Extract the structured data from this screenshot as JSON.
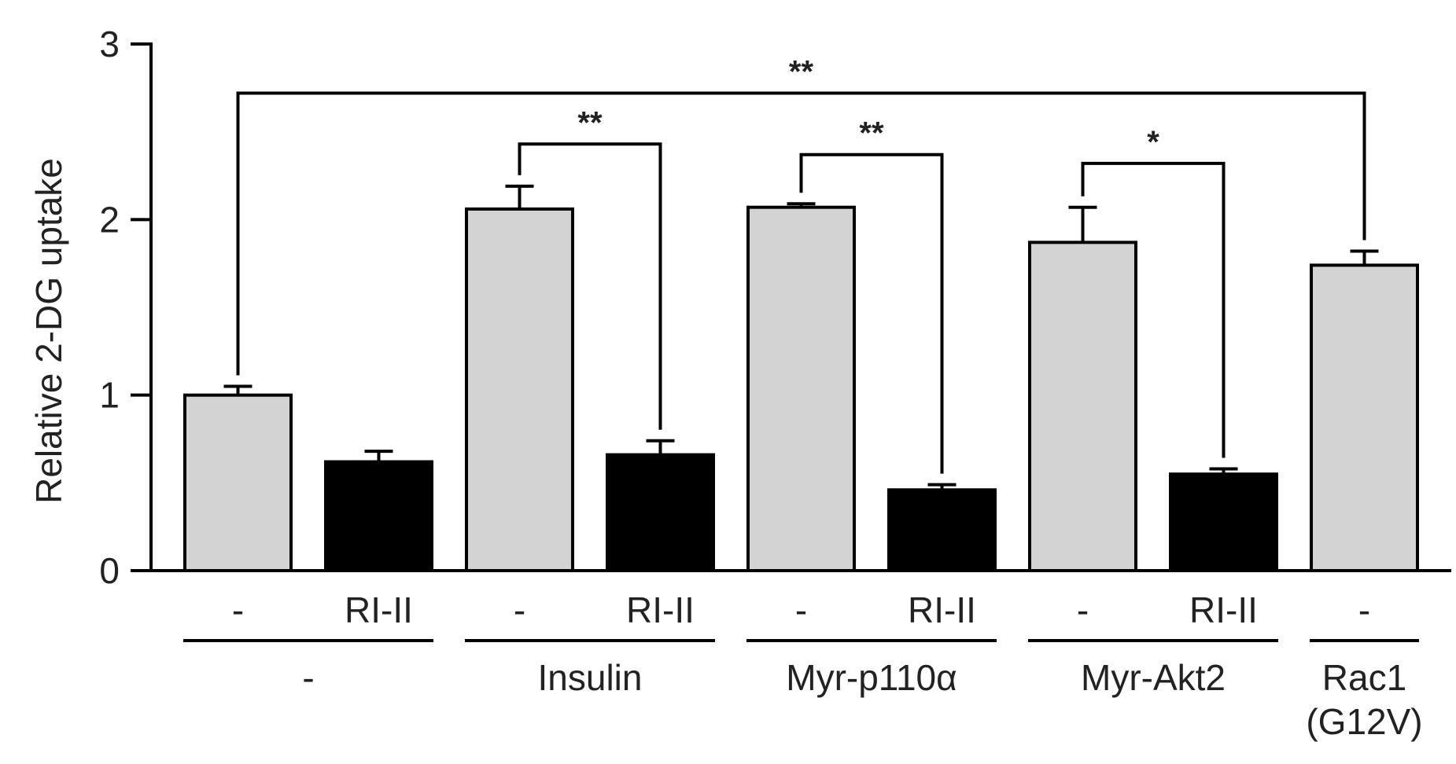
{
  "chart_data": {
    "type": "bar",
    "title": "",
    "xlabel": "",
    "ylabel": "Relative 2-DG uptake",
    "ylim": [
      0,
      3
    ],
    "yticks": [
      "0",
      "1",
      "2",
      "3"
    ],
    "colors": {
      "control": "#d3d3d3",
      "treated": "#000000",
      "outline": "#000000"
    },
    "bars": [
      {
        "condition": "-",
        "group": "-",
        "value": 1.0,
        "error": 0.05,
        "fill": "control"
      },
      {
        "condition": "RI-II",
        "group": "-",
        "value": 0.62,
        "error": 0.06,
        "fill": "treated"
      },
      {
        "condition": "-",
        "group": "Insulin",
        "value": 2.06,
        "error": 0.13,
        "fill": "control"
      },
      {
        "condition": "RI-II",
        "group": "Insulin",
        "value": 0.66,
        "error": 0.08,
        "fill": "treated"
      },
      {
        "condition": "-",
        "group": "Myr-p110α",
        "value": 2.07,
        "error": 0.02,
        "fill": "control"
      },
      {
        "condition": "RI-II",
        "group": "Myr-p110α",
        "value": 0.46,
        "error": 0.03,
        "fill": "treated"
      },
      {
        "condition": "-",
        "group": "Myr-Akt2",
        "value": 1.87,
        "error": 0.2,
        "fill": "control"
      },
      {
        "condition": "RI-II",
        "group": "Myr-Akt2",
        "value": 0.55,
        "error": 0.03,
        "fill": "treated"
      },
      {
        "condition": "-",
        "group": "Rac1 (G12V)",
        "value": 1.74,
        "error": 0.08,
        "fill": "control"
      }
    ],
    "groups": [
      {
        "lines": [
          "-"
        ]
      },
      {
        "lines": [
          "Insulin"
        ]
      },
      {
        "lines": [
          "Myr-p110α"
        ]
      },
      {
        "lines": [
          "Myr-Akt2"
        ]
      },
      {
        "lines": [
          "Rac1",
          "(G12V)"
        ]
      }
    ],
    "significance": [
      {
        "from_bar": 0,
        "to_bar": 8,
        "label": "**",
        "level": 2.72
      },
      {
        "from_bar": 2,
        "to_bar": 3,
        "label": "**",
        "level": 2.43
      },
      {
        "from_bar": 4,
        "to_bar": 5,
        "label": "**",
        "level": 2.37
      },
      {
        "from_bar": 6,
        "to_bar": 7,
        "label": "*",
        "level": 2.32
      }
    ]
  }
}
